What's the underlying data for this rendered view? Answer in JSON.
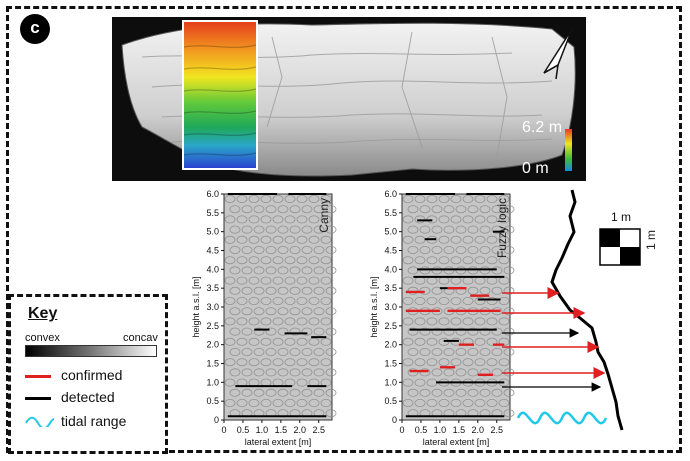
{
  "panel_label": "c",
  "photo": {
    "scale_max": "6.2 m",
    "scale_min": "0 m"
  },
  "chart_data": [
    {
      "type": "scatter",
      "title": "Canny",
      "xlabel": "lateral extent [m]",
      "ylabel": "height a.s.l. [m]",
      "x_ticks": [
        "0",
        "0.5",
        "1.0",
        "1.5",
        "2.0",
        "2.5"
      ],
      "y_ticks": [
        "0",
        "0.5",
        "1.0",
        "1.5",
        "2.0",
        "2.5",
        "3.0",
        "3.5",
        "4.0",
        "4.5",
        "5.0",
        "5.5",
        "6.0"
      ],
      "xlim": [
        0,
        2.85
      ],
      "ylim": [
        0,
        6.0
      ],
      "detected": [
        [
          0.1,
          6.0,
          1.4
        ],
        [
          1.7,
          6.0,
          2.7
        ],
        [
          0.8,
          2.4,
          1.2
        ],
        [
          1.6,
          2.3,
          2.2
        ],
        [
          2.3,
          2.2,
          2.7
        ],
        [
          0.3,
          0.9,
          1.8
        ],
        [
          2.2,
          0.9,
          2.7
        ],
        [
          0.1,
          0.1,
          2.7
        ]
      ]
    },
    {
      "type": "scatter",
      "title": "Fuzzy logic",
      "xlabel": "lateral extent [m]",
      "ylabel": "height a.s.l. [m]",
      "x_ticks": [
        "0",
        "0.5",
        "1.0",
        "1.5",
        "2.0",
        "2.5"
      ],
      "y_ticks": [
        "0",
        "0.5",
        "1.0",
        "1.5",
        "2.0",
        "2.5",
        "3.0",
        "3.5",
        "4.0",
        "4.5",
        "5.0",
        "5.5",
        "6.0"
      ],
      "xlim": [
        0,
        2.85
      ],
      "ylim": [
        0,
        6.0
      ],
      "detected": [
        [
          0.1,
          6.0,
          1.4
        ],
        [
          1.7,
          6.0,
          2.7
        ],
        [
          0.4,
          5.3,
          0.8
        ],
        [
          2.4,
          5.0,
          2.7
        ],
        [
          0.6,
          4.8,
          0.9
        ],
        [
          0.4,
          4.0,
          2.5
        ],
        [
          0.3,
          3.8,
          2.7
        ],
        [
          1.0,
          3.5,
          1.4
        ],
        [
          2.0,
          3.2,
          2.6
        ],
        [
          0.2,
          2.4,
          2.5
        ],
        [
          1.1,
          2.1,
          1.5
        ],
        [
          0.9,
          1.0,
          2.7
        ],
        [
          0.1,
          0.1,
          2.7
        ]
      ],
      "confirmed": [
        [
          0.1,
          3.4,
          0.6
        ],
        [
          1.2,
          3.5,
          1.7
        ],
        [
          1.8,
          3.3,
          2.3
        ],
        [
          0.1,
          2.9,
          1.0
        ],
        [
          1.2,
          2.9,
          2.6
        ],
        [
          1.5,
          2.0,
          1.9
        ],
        [
          2.4,
          2.0,
          2.7
        ],
        [
          0.2,
          1.3,
          0.7
        ],
        [
          1.0,
          1.4,
          1.4
        ],
        [
          2.0,
          1.2,
          2.4
        ]
      ]
    }
  ],
  "scale_box": {
    "label_horizontal": "1 m",
    "label_vertical": "1 m"
  },
  "key": {
    "title": "Key",
    "gradient_left": "convex",
    "gradient_right": "concav",
    "items": [
      {
        "label": "confirmed",
        "color": "#e02020"
      },
      {
        "label": "detected",
        "color": "#000000"
      },
      {
        "label": "tidal range",
        "color": "#22c8e8"
      }
    ]
  }
}
